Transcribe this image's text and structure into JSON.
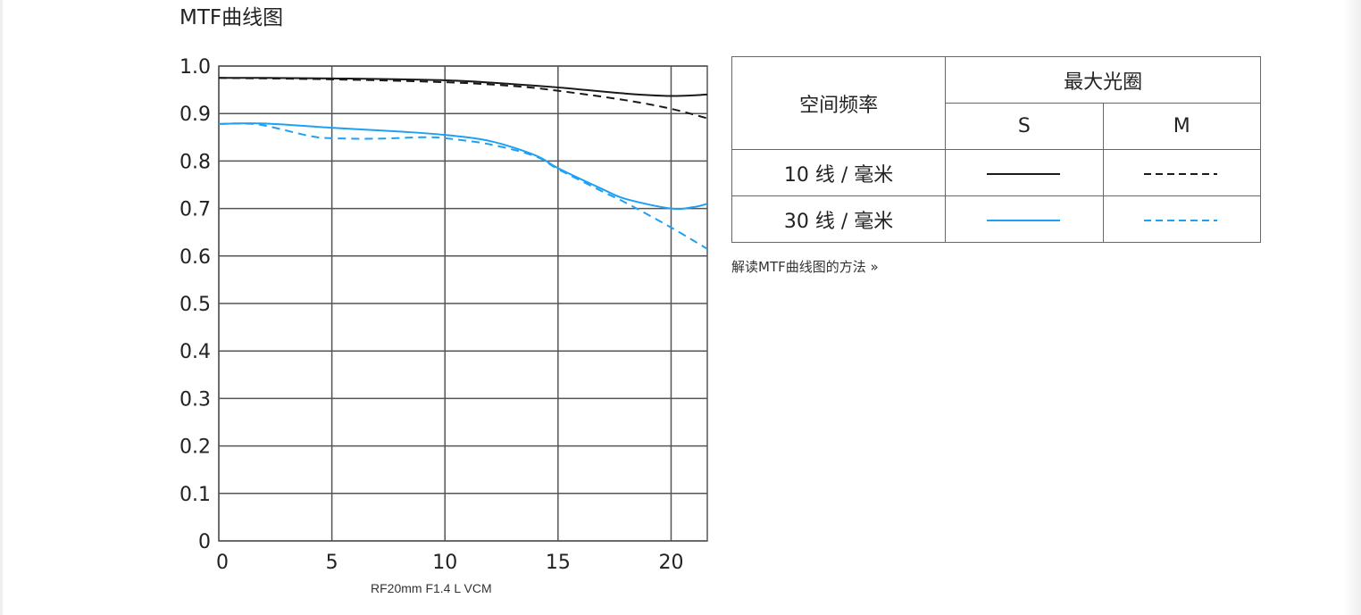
{
  "title": "MTF曲线图",
  "chart_data": {
    "type": "line",
    "title": "MTF曲线图",
    "xlabel": "RF20mm F1.4 L VCM",
    "ylabel": "",
    "xlim": [
      0,
      21.6
    ],
    "ylim": [
      0,
      1.0
    ],
    "xticks": [
      "0",
      "5",
      "10",
      "15",
      "20"
    ],
    "yticks": [
      "0",
      "0.1",
      "0.2",
      "0.3",
      "0.4",
      "0.5",
      "0.6",
      "0.7",
      "0.8",
      "0.9",
      "1.0"
    ],
    "grid": true,
    "series": [
      {
        "name": "10 线 / 毫米 S",
        "color": "#1a1a1a",
        "dash": false,
        "points": [
          [
            0,
            0.975
          ],
          [
            2,
            0.975
          ],
          [
            5,
            0.974
          ],
          [
            10,
            0.97
          ],
          [
            13,
            0.962
          ],
          [
            15,
            0.955
          ],
          [
            18,
            0.942
          ],
          [
            20,
            0.937
          ],
          [
            21.6,
            0.94
          ]
        ]
      },
      {
        "name": "10 线 / 毫米 M",
        "color": "#1a1a1a",
        "dash": true,
        "points": [
          [
            0,
            0.975
          ],
          [
            5,
            0.972
          ],
          [
            10,
            0.966
          ],
          [
            13,
            0.958
          ],
          [
            15,
            0.948
          ],
          [
            18,
            0.928
          ],
          [
            20,
            0.91
          ],
          [
            21.6,
            0.89
          ]
        ]
      },
      {
        "name": "30 线 / 毫米 S",
        "color": "#1ea0f5",
        "dash": false,
        "points": [
          [
            0,
            0.878
          ],
          [
            2,
            0.879
          ],
          [
            5,
            0.87
          ],
          [
            8,
            0.862
          ],
          [
            10,
            0.855
          ],
          [
            12,
            0.842
          ],
          [
            14,
            0.812
          ],
          [
            15,
            0.785
          ],
          [
            17,
            0.74
          ],
          [
            18,
            0.72
          ],
          [
            20,
            0.7
          ],
          [
            21,
            0.703
          ],
          [
            21.6,
            0.71
          ]
        ]
      },
      {
        "name": "30 线 / 毫米 M",
        "color": "#1ea0f5",
        "dash": true,
        "points": [
          [
            0,
            0.878
          ],
          [
            1,
            0.879
          ],
          [
            2,
            0.875
          ],
          [
            4,
            0.853
          ],
          [
            5,
            0.848
          ],
          [
            7,
            0.847
          ],
          [
            9,
            0.85
          ],
          [
            10,
            0.848
          ],
          [
            12,
            0.835
          ],
          [
            14,
            0.81
          ],
          [
            15,
            0.783
          ],
          [
            17,
            0.735
          ],
          [
            18,
            0.712
          ],
          [
            20,
            0.66
          ],
          [
            21.6,
            0.615
          ]
        ]
      }
    ]
  },
  "legend": {
    "freq_header": "空间频率",
    "aperture_header": "最大光圈",
    "s": "S",
    "m": "M",
    "row10": "10 线 / 毫米",
    "row30": "30 线 / 毫米"
  },
  "link": "解读MTF曲线图的方法 »"
}
